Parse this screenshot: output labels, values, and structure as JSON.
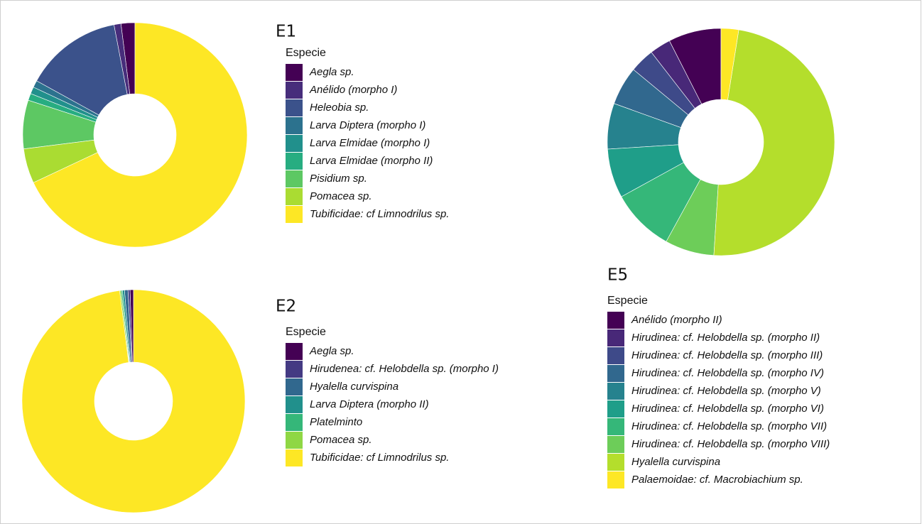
{
  "chart_data": [
    {
      "type": "pie",
      "title": "E1",
      "legend_title": "Especie",
      "categories": [
        "Aegla sp.",
        "Anélido (morpho I)",
        "Heleobia sp.",
        "Larva Diptera (morpho I)",
        "Larva Elmidae (morpho I)",
        "Larva Elmidae (morpho II)",
        "Pisidium sp.",
        "Pomacea sp.",
        "Tubificidae: cf Limnodrilus sp."
      ],
      "values": [
        2,
        1,
        14,
        1,
        1,
        1,
        7,
        5,
        68
      ],
      "colors": [
        "#440154",
        "#472D7B",
        "#3B528B",
        "#2C728E",
        "#21908C",
        "#27AD81",
        "#5DC863",
        "#AADC32",
        "#FDE725"
      ]
    },
    {
      "type": "pie",
      "title": "E2",
      "legend_title": "Especie",
      "categories": [
        "Aegla sp.",
        "Hirudenea: cf. Helobdella sp. (morpho I)",
        "Hyalella curvispina",
        "Larva Diptera (morpho II)",
        "Platelminto",
        "Pomacea sp.",
        "Tubificidae: cf Limnodrilus sp."
      ],
      "values": [
        0.5,
        0.3,
        0.5,
        0.3,
        0.2,
        0.2,
        98
      ],
      "colors": [
        "#440154",
        "#443A83",
        "#31688E",
        "#21908C",
        "#35B779",
        "#8FD744",
        "#FDE725"
      ]
    },
    {
      "type": "pie",
      "title": "E5",
      "legend_title": "Especie",
      "categories": [
        "Anélido (morpho II)",
        "Hirudinea: cf. Helobdella sp. (morpho II)",
        "Hirudinea: cf. Helobdella sp. (morpho III)",
        "Hirudinea: cf. Helobdella sp. (morpho IV)",
        "Hirudinea: cf. Helobdella sp. (morpho V)",
        "Hirudinea: cf. Helobdella sp. (morpho VI)",
        "Hirudinea: cf. Helobdella sp. (morpho VII)",
        "Hirudinea: cf. Helobdella sp. (morpho VIII)",
        "Hyalella curvispina",
        "Palaemoidae: cf. Macrobiachium sp."
      ],
      "values": [
        7.5,
        3,
        3.5,
        5.5,
        6.5,
        7,
        9,
        7,
        48.5,
        2.5
      ],
      "colors": [
        "#440154",
        "#482878",
        "#3E4A89",
        "#31688E",
        "#26828E",
        "#1F9E89",
        "#35B779",
        "#6DCD59",
        "#B4DE2C",
        "#FDE725"
      ]
    }
  ]
}
